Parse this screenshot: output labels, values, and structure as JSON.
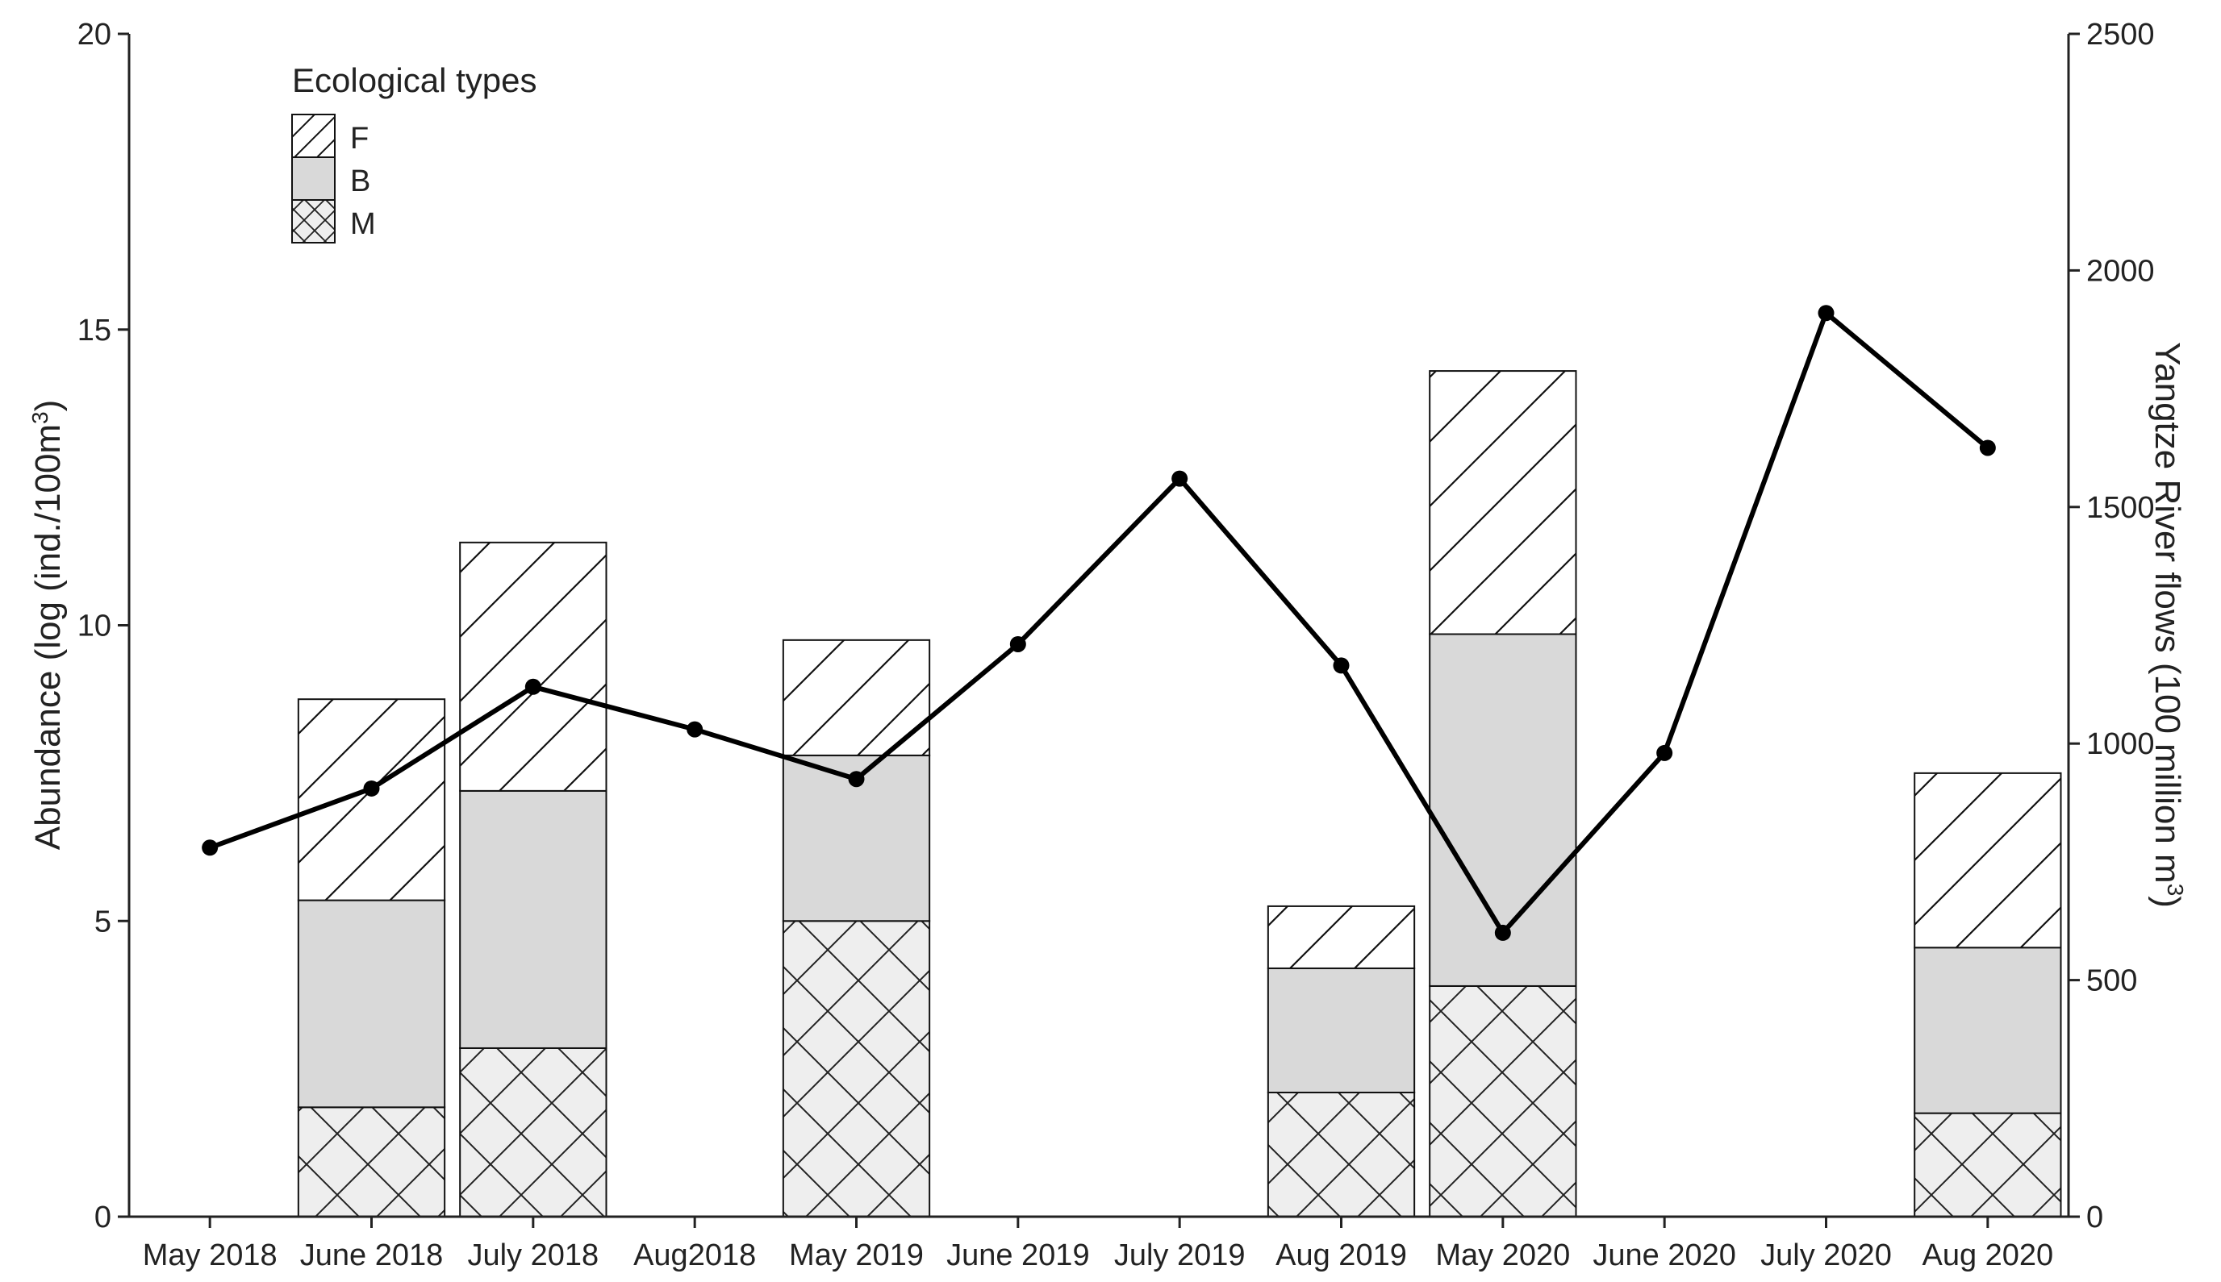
{
  "chart_data": {
    "type": "bar",
    "stacked": true,
    "categories": [
      "May 2018",
      "June 2018",
      "July 2018",
      "Aug2018",
      "May 2019",
      "June 2019",
      "July 2019",
      "Aug 2019",
      "May 2020",
      "June 2020",
      "July 2020",
      "Aug 2020"
    ],
    "title": "",
    "ylabel": "Abundance (log (ind./100m3)",
    "ylabel_parts": {
      "before": "Abundance (log (ind./100m",
      "sup": "3",
      "after": ")"
    },
    "y2label": "Yangtze River flows (100 million m3)",
    "y2label_parts": {
      "before": "Yangtze River flows (100 million m",
      "sup": "3",
      "after": ")"
    },
    "ylim": [
      0,
      20
    ],
    "yticks": [
      0,
      5,
      10,
      15,
      20
    ],
    "y2lim": [
      0,
      2500
    ],
    "y2ticks": [
      0,
      500,
      1000,
      1500,
      2000,
      2500
    ],
    "legend": {
      "title": "Ecological types",
      "position": "top-left"
    },
    "series": [
      {
        "name": "M",
        "pattern": "crosshatch",
        "fill": "#eeeeee",
        "values": [
          null,
          1.85,
          2.85,
          null,
          5.0,
          null,
          null,
          2.1,
          3.9,
          null,
          null,
          1.75
        ]
      },
      {
        "name": "B",
        "pattern": "solid",
        "fill": "#d9d9d9",
        "values": [
          null,
          3.5,
          4.35,
          null,
          2.8,
          null,
          null,
          2.1,
          5.95,
          null,
          null,
          2.8
        ]
      },
      {
        "name": "F",
        "pattern": "diagonal",
        "fill": "#ffffff",
        "values": [
          null,
          3.4,
          4.2,
          null,
          1.95,
          null,
          null,
          1.05,
          4.45,
          null,
          null,
          2.95
        ]
      }
    ],
    "line_series": {
      "axis": "right",
      "color": "#000000",
      "values": [
        780,
        905,
        1120,
        1030,
        925,
        1210,
        1560,
        1165,
        600,
        980,
        1910,
        1625
      ]
    },
    "grid": false
  }
}
